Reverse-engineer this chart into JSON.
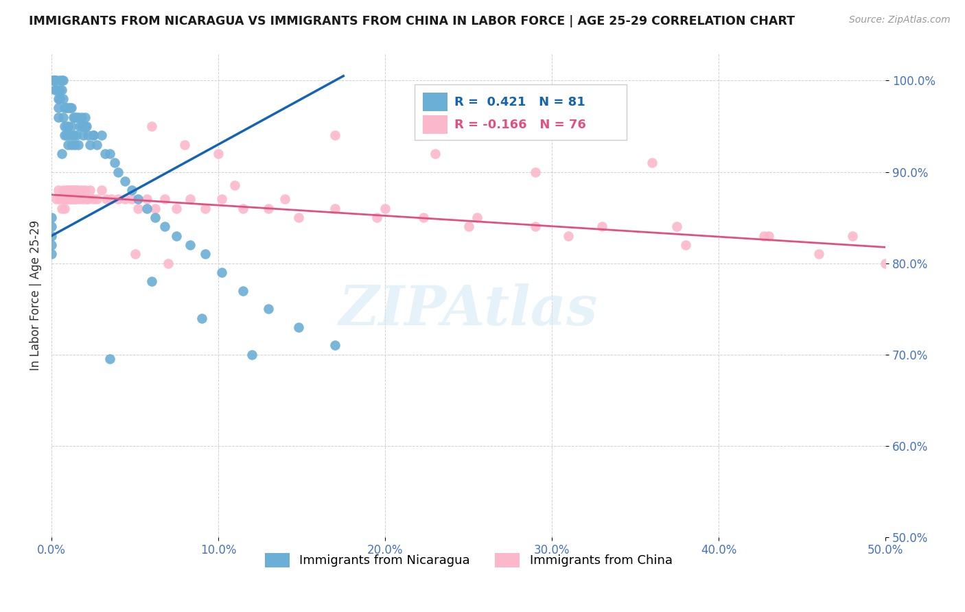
{
  "title": "IMMIGRANTS FROM NICARAGUA VS IMMIGRANTS FROM CHINA IN LABOR FORCE | AGE 25-29 CORRELATION CHART",
  "source": "Source: ZipAtlas.com",
  "ylabel": "In Labor Force | Age 25-29",
  "xlim": [
    0.0,
    0.5
  ],
  "ylim": [
    0.5,
    1.03
  ],
  "yticks": [
    0.5,
    0.6,
    0.7,
    0.8,
    0.9,
    1.0
  ],
  "ytick_labels": [
    "50.0%",
    "60.0%",
    "70.0%",
    "80.0%",
    "90.0%",
    "100.0%"
  ],
  "xticks": [
    0.0,
    0.1,
    0.2,
    0.3,
    0.4,
    0.5
  ],
  "xtick_labels": [
    "0.0%",
    "10.0%",
    "20.0%",
    "30.0%",
    "40.0%",
    "50.0%"
  ],
  "nicaragua_color": "#6baed6",
  "china_color": "#fcb8cb",
  "nicaragua_line_color": "#1464b4",
  "china_line_color": "#e05080",
  "r_nicaragua": 0.421,
  "n_nicaragua": 81,
  "r_china": -0.166,
  "n_china": 76,
  "legend_label_nicaragua": "Immigrants from Nicaragua",
  "legend_label_china": "Immigrants from China",
  "watermark": "ZIPAtlas",
  "nicaragua_scatter_x": [
    0.0,
    0.0,
    0.0,
    0.0,
    0.0,
    0.001,
    0.001,
    0.002,
    0.002,
    0.002,
    0.003,
    0.003,
    0.004,
    0.004,
    0.004,
    0.005,
    0.005,
    0.005,
    0.006,
    0.006,
    0.006,
    0.007,
    0.007,
    0.007,
    0.008,
    0.008,
    0.008,
    0.009,
    0.009,
    0.009,
    0.01,
    0.01,
    0.01,
    0.011,
    0.011,
    0.012,
    0.012,
    0.012,
    0.013,
    0.013,
    0.014,
    0.014,
    0.015,
    0.015,
    0.016,
    0.016,
    0.017,
    0.018,
    0.019,
    0.02,
    0.021,
    0.022,
    0.023,
    0.025,
    0.027,
    0.03,
    0.032,
    0.035,
    0.038,
    0.04,
    0.044,
    0.048,
    0.052,
    0.057,
    0.062,
    0.068,
    0.075,
    0.083,
    0.092,
    0.102,
    0.115,
    0.13,
    0.148,
    0.17,
    0.06,
    0.09,
    0.035,
    0.018,
    0.02,
    0.025,
    0.12
  ],
  "nicaragua_scatter_y": [
    0.85,
    0.84,
    0.83,
    0.82,
    0.81,
    1.0,
    1.0,
    1.0,
    1.0,
    0.99,
    1.0,
    0.99,
    0.98,
    0.97,
    0.96,
    1.0,
    0.99,
    0.98,
    1.0,
    0.99,
    0.92,
    1.0,
    0.98,
    0.96,
    0.97,
    0.95,
    0.94,
    0.97,
    0.95,
    0.94,
    0.97,
    0.95,
    0.93,
    0.97,
    0.94,
    0.97,
    0.95,
    0.93,
    0.96,
    0.94,
    0.96,
    0.93,
    0.96,
    0.94,
    0.96,
    0.93,
    0.95,
    0.95,
    0.94,
    0.96,
    0.95,
    0.94,
    0.93,
    0.94,
    0.93,
    0.94,
    0.92,
    0.92,
    0.91,
    0.9,
    0.89,
    0.88,
    0.87,
    0.86,
    0.85,
    0.84,
    0.83,
    0.82,
    0.81,
    0.79,
    0.77,
    0.75,
    0.73,
    0.71,
    0.78,
    0.74,
    0.695,
    0.96,
    0.95,
    0.94,
    0.7
  ],
  "china_scatter_x": [
    0.003,
    0.004,
    0.005,
    0.006,
    0.007,
    0.007,
    0.008,
    0.008,
    0.009,
    0.009,
    0.01,
    0.01,
    0.011,
    0.011,
    0.012,
    0.012,
    0.013,
    0.013,
    0.014,
    0.014,
    0.015,
    0.015,
    0.016,
    0.017,
    0.018,
    0.019,
    0.02,
    0.021,
    0.022,
    0.023,
    0.025,
    0.027,
    0.03,
    0.033,
    0.036,
    0.04,
    0.044,
    0.048,
    0.052,
    0.057,
    0.062,
    0.068,
    0.075,
    0.083,
    0.092,
    0.102,
    0.115,
    0.13,
    0.148,
    0.17,
    0.195,
    0.223,
    0.255,
    0.29,
    0.33,
    0.375,
    0.427,
    0.48,
    0.1,
    0.06,
    0.08,
    0.17,
    0.23,
    0.29,
    0.36,
    0.43,
    0.11,
    0.14,
    0.05,
    0.07,
    0.2,
    0.25,
    0.31,
    0.38,
    0.46,
    0.5
  ],
  "china_scatter_y": [
    0.87,
    0.88,
    0.87,
    0.86,
    0.87,
    0.88,
    0.87,
    0.86,
    0.88,
    0.87,
    0.88,
    0.87,
    0.88,
    0.87,
    0.88,
    0.87,
    0.88,
    0.87,
    0.88,
    0.87,
    0.88,
    0.87,
    0.88,
    0.87,
    0.88,
    0.87,
    0.88,
    0.87,
    0.87,
    0.88,
    0.87,
    0.87,
    0.88,
    0.87,
    0.87,
    0.87,
    0.87,
    0.87,
    0.86,
    0.87,
    0.86,
    0.87,
    0.86,
    0.87,
    0.86,
    0.87,
    0.86,
    0.86,
    0.85,
    0.86,
    0.85,
    0.85,
    0.85,
    0.84,
    0.84,
    0.84,
    0.83,
    0.83,
    0.92,
    0.95,
    0.93,
    0.94,
    0.92,
    0.9,
    0.91,
    0.83,
    0.885,
    0.87,
    0.81,
    0.8,
    0.86,
    0.84,
    0.83,
    0.82,
    0.81,
    0.8
  ]
}
